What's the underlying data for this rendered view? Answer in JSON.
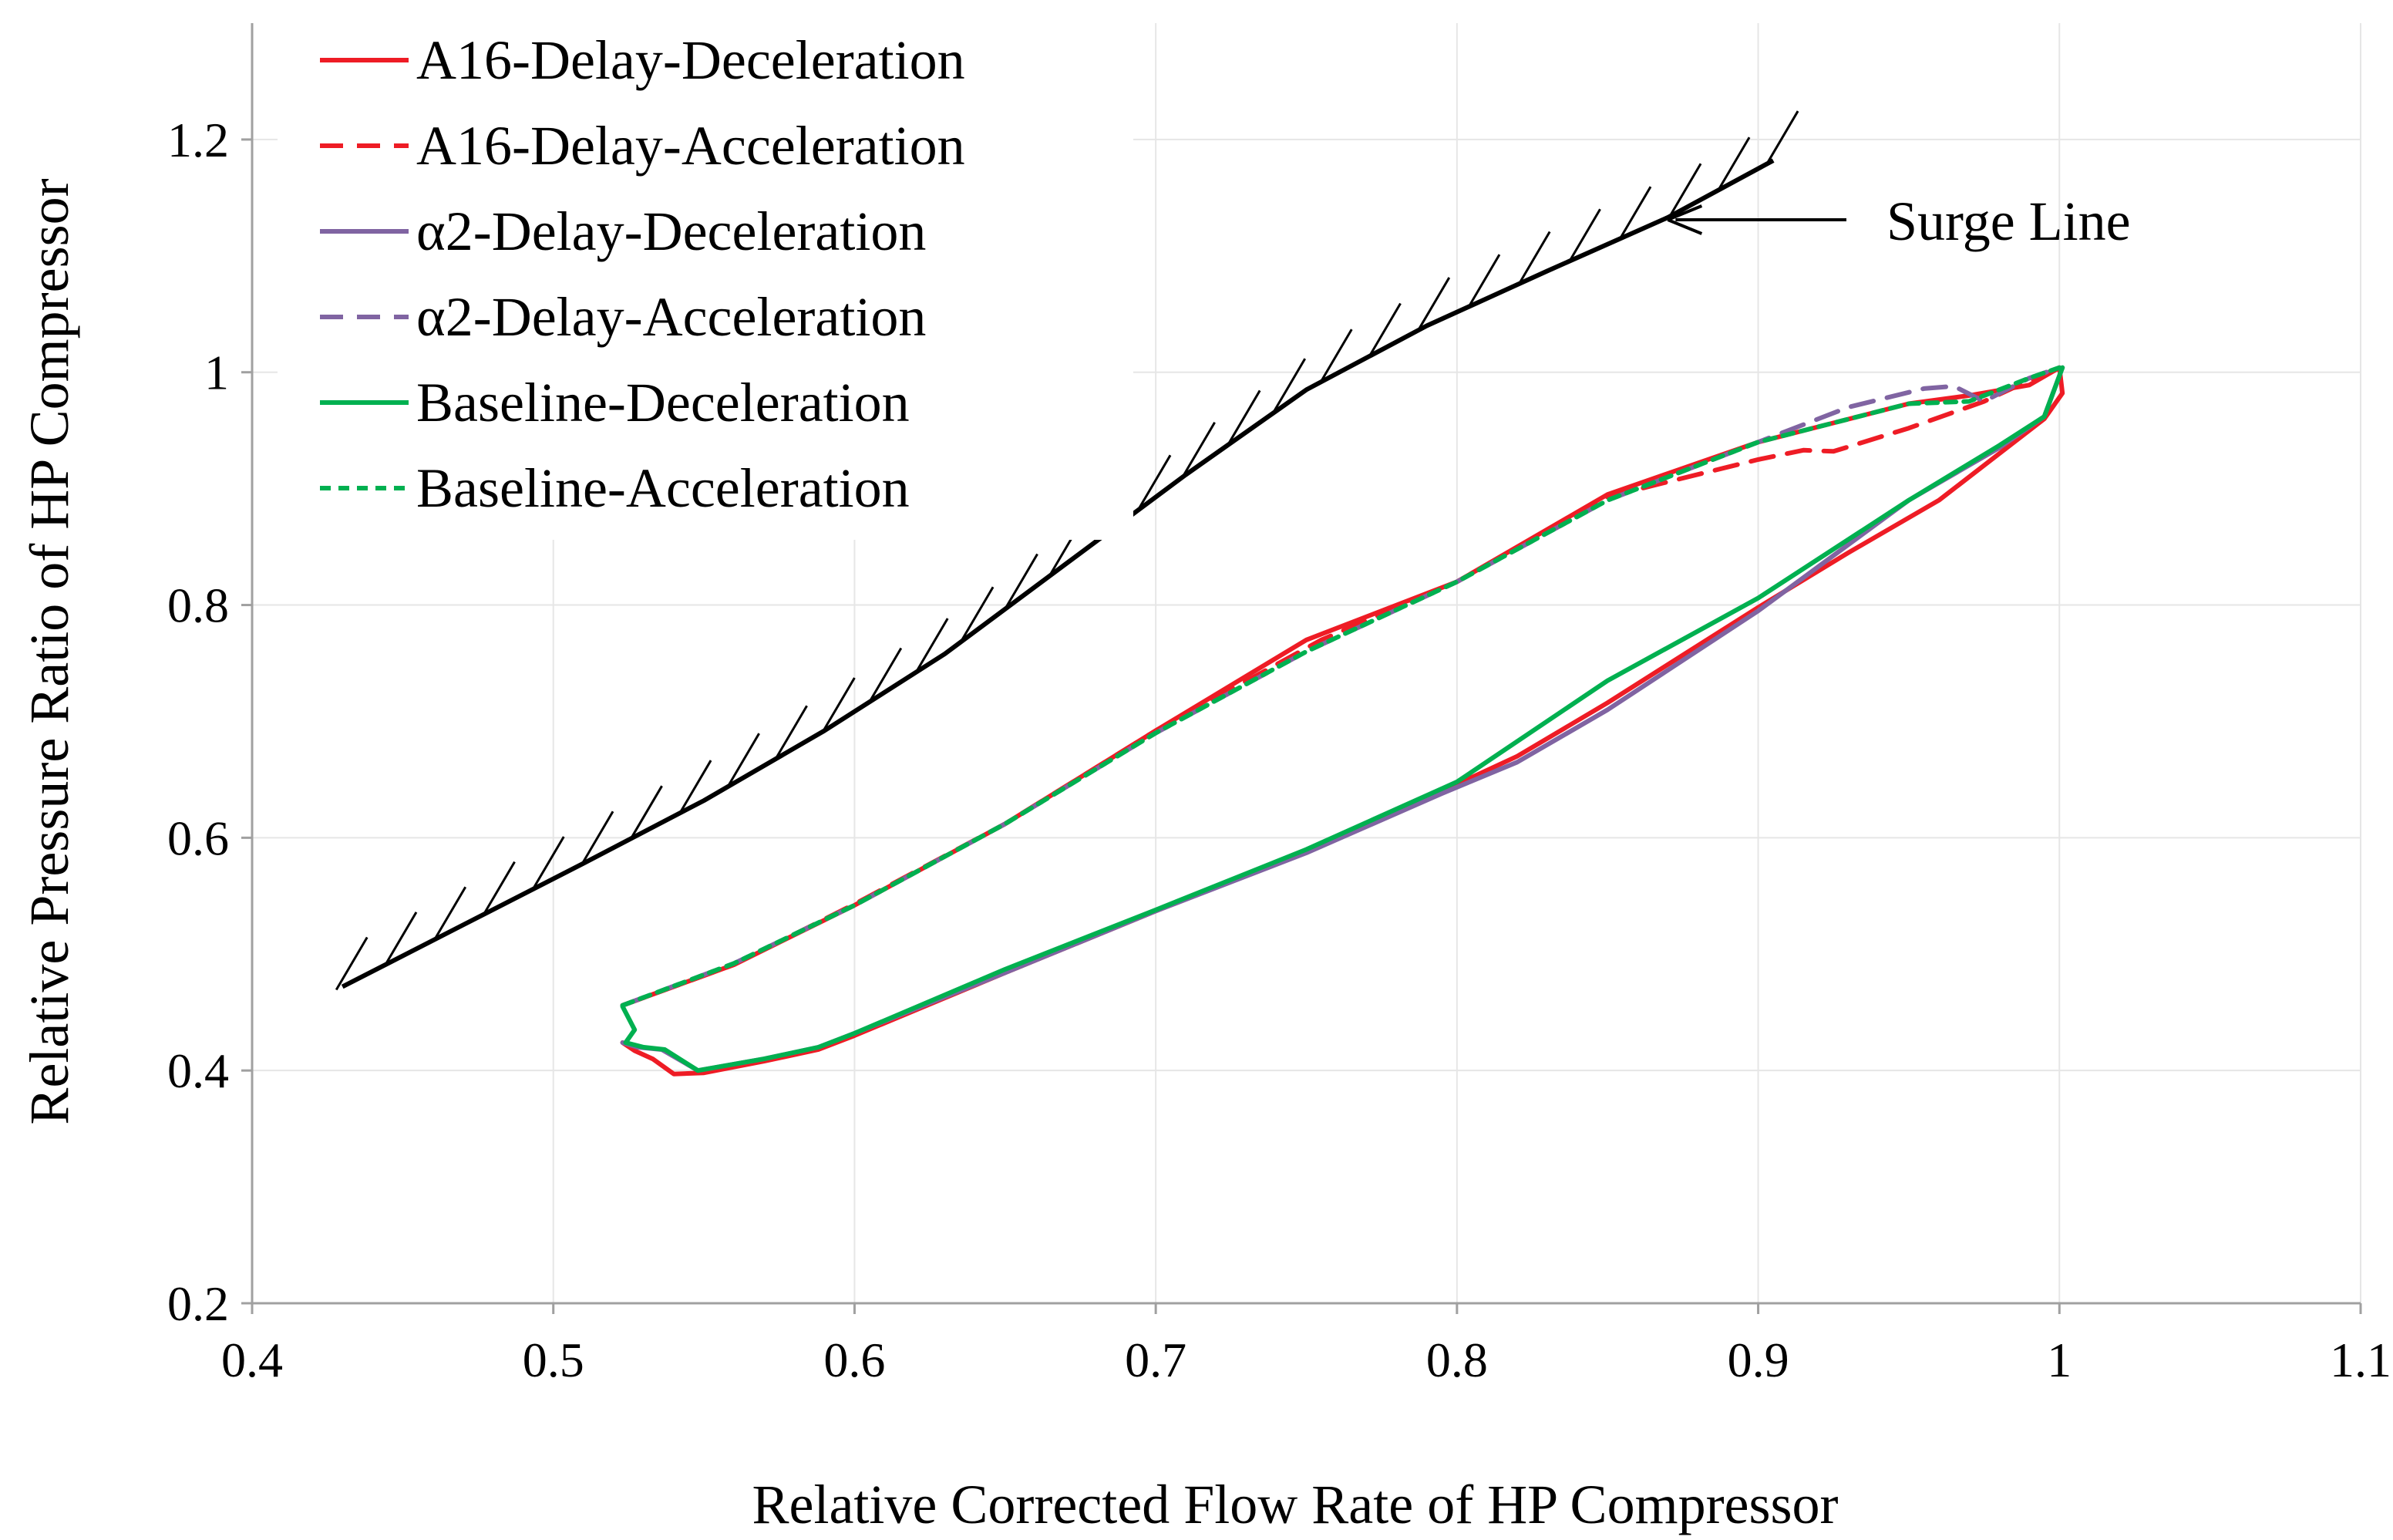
{
  "chart_data": {
    "type": "line",
    "title": "",
    "xlabel": "Relative Corrected Flow Rate of HP Compressor",
    "ylabel": "Relative Pressure Ratio of HP Compressor",
    "xlim": [
      0.4,
      1.1
    ],
    "ylim": [
      0.2,
      1.3
    ],
    "xticks": [
      0.4,
      0.5,
      0.6,
      0.7,
      0.8,
      0.9,
      1.0,
      1.1
    ],
    "xtick_labels": [
      "0.4",
      "0.5",
      "0.6",
      "0.7",
      "0.8",
      "0.9",
      "1",
      "1.1"
    ],
    "yticks": [
      0.2,
      0.4,
      0.6,
      0.8,
      1.0,
      1.2
    ],
    "ytick_labels": [
      "0.2",
      "0.4",
      "0.6",
      "0.8",
      "1",
      "1.2"
    ],
    "grid": true,
    "legend_position": "top-left",
    "annotation": {
      "text": "Surge Line",
      "arrow_to": [
        0.87,
        1.135
      ]
    },
    "surge_line": {
      "name": "Surge Line",
      "color": "#000000",
      "x": [
        0.43,
        0.47,
        0.51,
        0.55,
        0.59,
        0.63,
        0.67,
        0.71,
        0.75,
        0.79,
        0.83,
        0.87,
        0.905
      ],
      "y": [
        0.472,
        0.525,
        0.578,
        0.632,
        0.692,
        0.758,
        0.835,
        0.912,
        0.985,
        1.04,
        1.087,
        1.133,
        1.182
      ]
    },
    "series": [
      {
        "name": "A16-Delay-Deceleration",
        "color": "#ee1c25",
        "dash": "solid",
        "x": [
          0.523,
          0.527,
          0.533,
          0.54,
          0.55,
          0.57,
          0.588,
          0.6,
          0.65,
          0.7,
          0.75,
          0.795,
          0.82,
          0.85,
          0.9,
          0.93,
          0.96,
          0.98,
          0.995,
          1.001,
          1.0,
          0.99,
          0.97,
          0.95,
          0.9,
          0.85,
          0.8,
          0.75,
          0.7,
          0.65,
          0.6,
          0.56,
          0.523
        ],
        "y": [
          0.424,
          0.417,
          0.41,
          0.397,
          0.398,
          0.408,
          0.418,
          0.43,
          0.484,
          0.537,
          0.588,
          0.64,
          0.67,
          0.716,
          0.798,
          0.845,
          0.89,
          0.93,
          0.96,
          0.982,
          1.004,
          0.989,
          0.98,
          0.973,
          0.94,
          0.895,
          0.82,
          0.77,
          0.692,
          0.612,
          0.542,
          0.491,
          0.456
        ]
      },
      {
        "name": "A16-Delay-Acceleration",
        "color": "#ee1c25",
        "dash": "dashed",
        "x": [
          0.523,
          0.56,
          0.6,
          0.65,
          0.7,
          0.755,
          0.8,
          0.85,
          0.9,
          0.915,
          0.925,
          0.95,
          0.975,
          0.99,
          1.0
        ],
        "y": [
          0.456,
          0.491,
          0.543,
          0.612,
          0.692,
          0.77,
          0.82,
          0.893,
          0.925,
          0.933,
          0.932,
          0.952,
          0.975,
          0.993,
          1.004
        ]
      },
      {
        "name": "α2-Delay-Deceleration",
        "color": "#8064a2",
        "dash": "solid",
        "x": [
          0.523,
          0.528,
          0.536,
          0.548,
          0.57,
          0.588,
          0.6,
          0.65,
          0.7,
          0.75,
          0.795,
          0.82,
          0.85,
          0.9,
          0.95,
          0.98,
          0.995,
          1.001
        ],
        "y": [
          0.424,
          0.42,
          0.418,
          0.4,
          0.41,
          0.42,
          0.432,
          0.484,
          0.537,
          0.587,
          0.638,
          0.665,
          0.71,
          0.795,
          0.89,
          0.935,
          0.962,
          1.004
        ]
      },
      {
        "name": "α2-Delay-Acceleration",
        "color": "#8064a2",
        "dash": "dashed",
        "x": [
          0.523,
          0.56,
          0.6,
          0.65,
          0.7,
          0.75,
          0.8,
          0.85,
          0.9,
          0.93,
          0.955,
          0.965,
          0.975,
          0.99,
          1.0
        ],
        "y": [
          0.456,
          0.492,
          0.542,
          0.612,
          0.69,
          0.76,
          0.82,
          0.89,
          0.94,
          0.97,
          0.986,
          0.988,
          0.975,
          0.995,
          1.004
        ]
      },
      {
        "name": "Baseline-Deceleration",
        "color": "#00b050",
        "dash": "solid",
        "x": [
          0.523,
          0.527,
          0.524,
          0.53,
          0.537,
          0.548,
          0.57,
          0.588,
          0.6,
          0.65,
          0.7,
          0.75,
          0.8,
          0.85,
          0.9,
          0.95,
          0.98,
          0.995,
          1.001
        ],
        "y": [
          0.455,
          0.435,
          0.424,
          0.42,
          0.418,
          0.4,
          0.41,
          0.42,
          0.432,
          0.487,
          0.538,
          0.59,
          0.648,
          0.735,
          0.806,
          0.89,
          0.937,
          0.962,
          1.004
        ]
      },
      {
        "name": "Baseline-Acceleration",
        "color": "#00b050",
        "dash": "dotted",
        "x": [
          0.523,
          0.56,
          0.6,
          0.65,
          0.7,
          0.75,
          0.8,
          0.85,
          0.9,
          0.95,
          0.97,
          0.99,
          1.0
        ],
        "y": [
          0.456,
          0.492,
          0.542,
          0.612,
          0.69,
          0.76,
          0.82,
          0.89,
          0.94,
          0.973,
          0.975,
          0.995,
          1.004
        ]
      }
    ]
  }
}
